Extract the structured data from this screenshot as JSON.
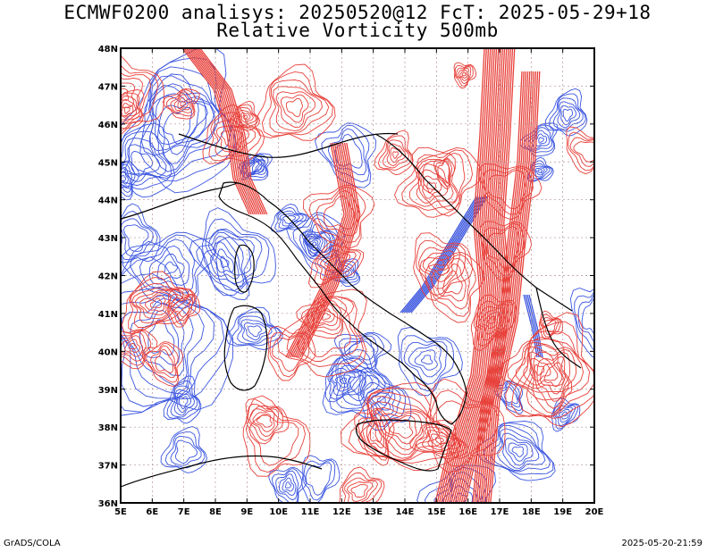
{
  "title_line1": "ECMWF0200 analisys: 20250520@12 FcT: 2025-05-29+18",
  "title_line2": "Relative Vorticity 500mb",
  "footer_left": "GrADS/COLA",
  "footer_right": "2025-05-20-21:59",
  "map": {
    "lon_range": [
      5,
      20
    ],
    "lat_range": [
      36,
      48
    ],
    "lon_labels": [
      "5E",
      "6E",
      "7E",
      "8E",
      "9E",
      "10E",
      "11E",
      "12E",
      "13E",
      "14E",
      "15E",
      "16E",
      "17E",
      "18E",
      "19E",
      "20E"
    ],
    "lat_labels": [
      "36N",
      "37N",
      "38N",
      "39N",
      "40N",
      "41N",
      "42N",
      "43N",
      "44N",
      "45N",
      "46N",
      "47N",
      "48N"
    ],
    "colors": {
      "positive_contour": "#e8403a",
      "negative_contour": "#3a55e0",
      "grid": "#b09090",
      "coast": "#000000"
    }
  }
}
